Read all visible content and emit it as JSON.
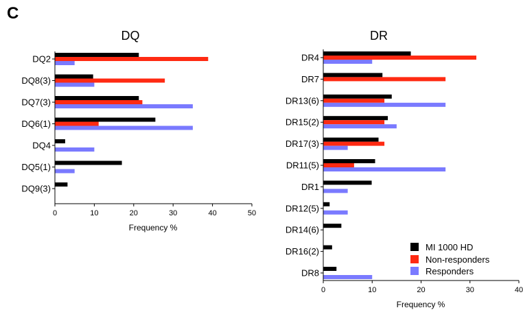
{
  "panel_label": "C",
  "legend": [
    {
      "name": "MI 1000 HD",
      "color": "#000000"
    },
    {
      "name": "Non-responders",
      "color": "#ff2a12"
    },
    {
      "name": "Responders",
      "color": "#7a7aff"
    }
  ],
  "chart_data": [
    {
      "type": "bar",
      "orientation": "horizontal",
      "title": "DQ",
      "xlabel": "Frequency %",
      "ylabel": "",
      "xlim": [
        0,
        50
      ],
      "xticks": [
        0,
        10,
        20,
        30,
        40,
        50
      ],
      "categories": [
        "DQ2",
        "DQ8(3)",
        "DQ7(3)",
        "DQ6(1)",
        "DQ4",
        "DQ5(1)",
        "DQ9(3)"
      ],
      "series": [
        {
          "name": "MI 1000 HD",
          "values": [
            21.3,
            9.7,
            21.3,
            25.5,
            2.6,
            17.0,
            3.2
          ]
        },
        {
          "name": "Non-responders",
          "values": [
            38.9,
            27.9,
            22.2,
            11.1,
            0,
            0,
            0
          ]
        },
        {
          "name": "Responders",
          "values": [
            5.0,
            10.0,
            35.0,
            35.0,
            10.0,
            5.0,
            0
          ]
        }
      ]
    },
    {
      "type": "bar",
      "orientation": "horizontal",
      "title": "DR",
      "xlabel": "Frequency %",
      "ylabel": "",
      "xlim": [
        0,
        40
      ],
      "xticks": [
        0,
        10,
        20,
        30,
        40
      ],
      "legend_position": "bottom-right",
      "categories": [
        "DR4",
        "DR7",
        "DR13(6)",
        "DR15(2)",
        "DR17(3)",
        "DR11(5)",
        "DR1",
        "DR12(5)",
        "DR14(6)",
        "DR16(2)",
        "DR8"
      ],
      "series": [
        {
          "name": "MI 1000 HD",
          "values": [
            17.9,
            12.1,
            14.0,
            13.2,
            11.3,
            10.6,
            9.9,
            1.3,
            3.7,
            1.8,
            2.7
          ]
        },
        {
          "name": "Non-responders",
          "values": [
            31.3,
            25.0,
            12.5,
            12.5,
            12.5,
            6.3,
            0,
            0,
            0,
            0,
            0
          ]
        },
        {
          "name": "Responders",
          "values": [
            10.0,
            0,
            25.0,
            15.0,
            5.0,
            25.0,
            5.0,
            5.0,
            0,
            0,
            10.0
          ]
        }
      ]
    }
  ]
}
